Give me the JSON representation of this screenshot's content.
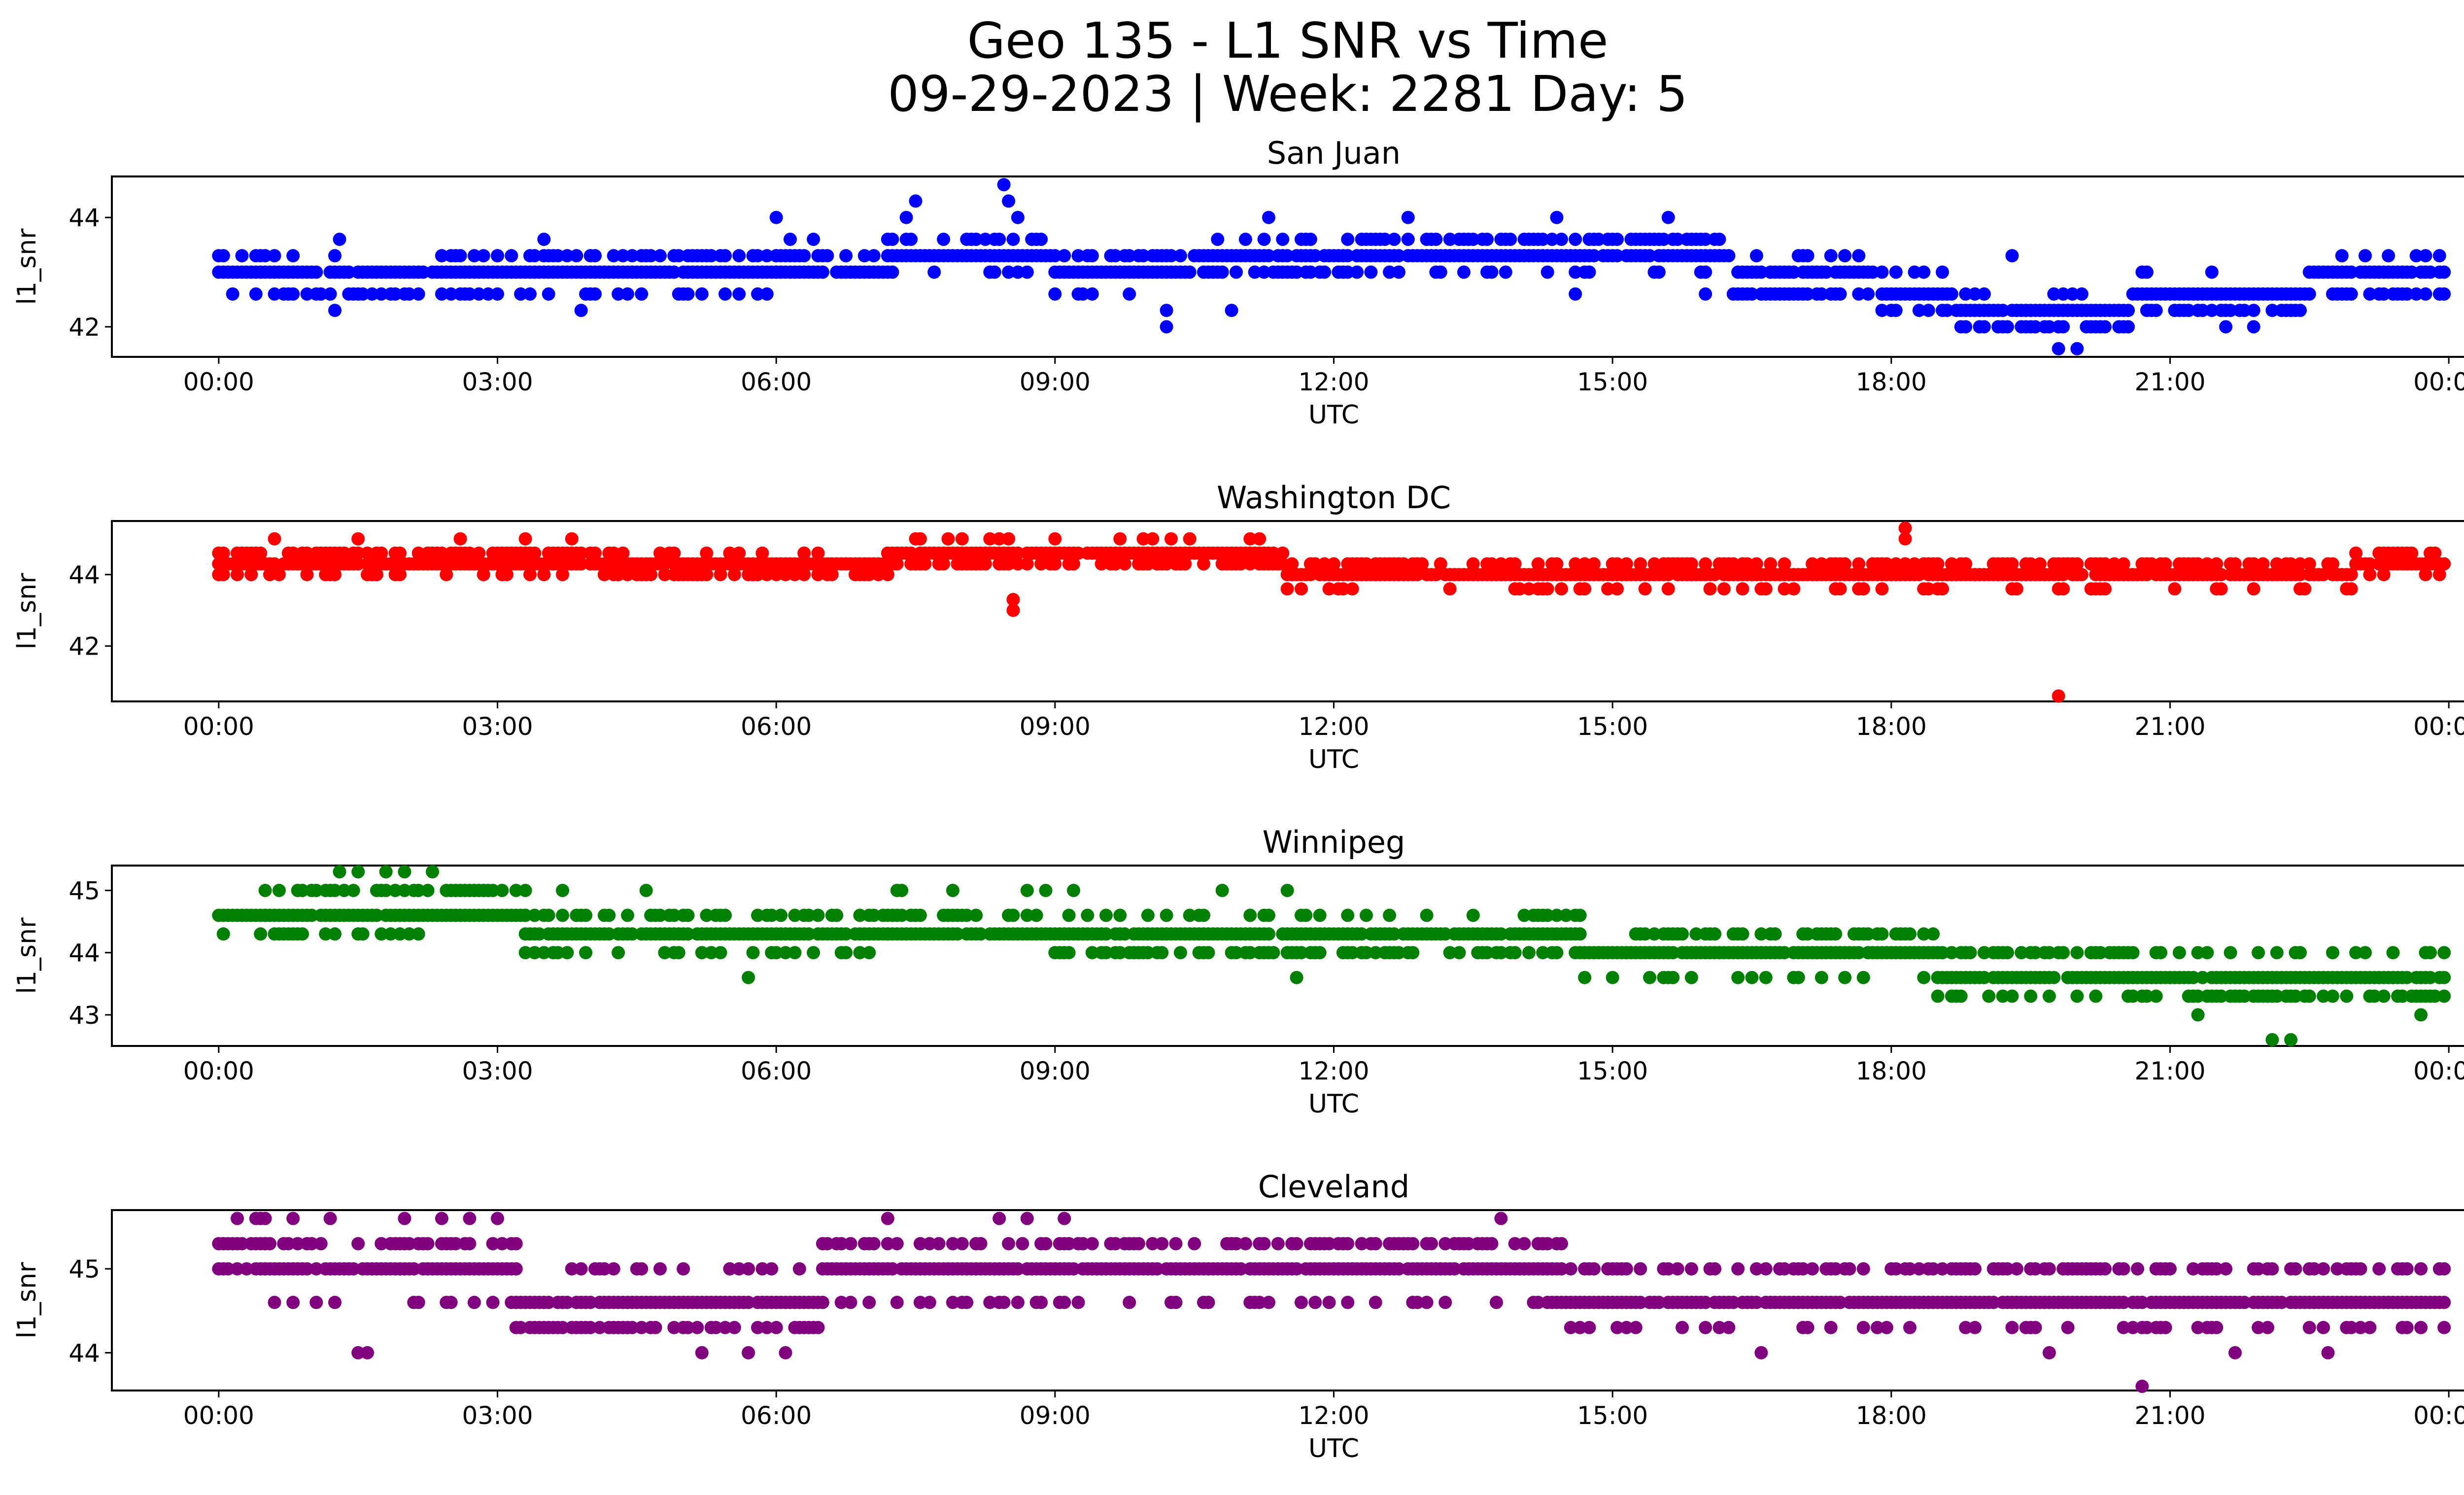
{
  "figure": {
    "title_line1": "Geo 135 - L1 SNR vs Time",
    "title_line2": "09-29-2023 | Week: 2281 Day: 5"
  },
  "chart_data": [
    {
      "type": "scatter",
      "title": "San Juan",
      "xlabel": "UTC",
      "ylabel": "l1_snr",
      "color": "#0000ff",
      "x_unit": "hours UTC",
      "xlim": [
        -1.15,
        25.15
      ],
      "ylim": [
        41.45,
        44.75
      ],
      "xticks": [
        0,
        3,
        6,
        9,
        12,
        15,
        18,
        21,
        24
      ],
      "xtick_labels": [
        "00:00",
        "03:00",
        "06:00",
        "09:00",
        "12:00",
        "15:00",
        "18:00",
        "21:00",
        "00:00"
      ],
      "yticks": [
        42,
        44
      ],
      "segments": [
        {
          "start": 0.0,
          "end": 0.6,
          "levels": [
            43.0,
            43.3,
            42.6
          ]
        },
        {
          "start": 0.6,
          "end": 1.5,
          "levels": [
            43.0,
            42.6,
            43.3
          ]
        },
        {
          "start": 1.5,
          "end": 3.0,
          "levels": [
            43.0,
            42.6,
            43.3
          ]
        },
        {
          "start": 3.0,
          "end": 6.0,
          "levels": [
            43.0,
            43.3,
            42.6
          ]
        },
        {
          "start": 6.0,
          "end": 7.2,
          "levels": [
            43.0,
            43.3,
            43.6
          ]
        },
        {
          "start": 7.2,
          "end": 9.0,
          "levels": [
            43.3,
            43.6,
            43.0
          ]
        },
        {
          "start": 9.0,
          "end": 10.5,
          "levels": [
            43.0,
            43.3,
            42.6
          ]
        },
        {
          "start": 10.5,
          "end": 12.3,
          "levels": [
            43.3,
            43.0,
            43.6
          ]
        },
        {
          "start": 12.3,
          "end": 16.3,
          "levels": [
            43.3,
            43.6,
            43.0
          ]
        },
        {
          "start": 16.3,
          "end": 17.9,
          "levels": [
            43.0,
            42.6,
            43.3
          ]
        },
        {
          "start": 17.9,
          "end": 18.7,
          "levels": [
            42.6,
            42.3,
            43.0
          ]
        },
        {
          "start": 18.7,
          "end": 20.6,
          "levels": [
            42.3,
            42.0,
            42.6
          ]
        },
        {
          "start": 20.6,
          "end": 22.5,
          "levels": [
            42.6,
            42.3,
            43.0
          ]
        },
        {
          "start": 22.5,
          "end": 24.0,
          "levels": [
            43.0,
            42.6,
            43.3
          ]
        }
      ],
      "points": [
        {
          "x": 1.25,
          "y": 42.3
        },
        {
          "x": 1.3,
          "y": 43.6
        },
        {
          "x": 3.5,
          "y": 43.6
        },
        {
          "x": 3.9,
          "y": 42.3
        },
        {
          "x": 6.0,
          "y": 44.0
        },
        {
          "x": 7.4,
          "y": 44.0
        },
        {
          "x": 7.5,
          "y": 44.3
        },
        {
          "x": 8.45,
          "y": 44.6
        },
        {
          "x": 8.5,
          "y": 44.3
        },
        {
          "x": 8.6,
          "y": 44.0
        },
        {
          "x": 10.2,
          "y": 42.0
        },
        {
          "x": 10.2,
          "y": 42.3
        },
        {
          "x": 11.3,
          "y": 44.0
        },
        {
          "x": 10.9,
          "y": 42.3
        },
        {
          "x": 12.8,
          "y": 44.0
        },
        {
          "x": 14.4,
          "y": 44.0
        },
        {
          "x": 15.6,
          "y": 44.0
        },
        {
          "x": 19.3,
          "y": 43.3
        },
        {
          "x": 19.8,
          "y": 41.6
        },
        {
          "x": 20.0,
          "y": 41.6
        },
        {
          "x": 21.6,
          "y": 42.0
        },
        {
          "x": 21.9,
          "y": 42.0
        },
        {
          "x": 16.0,
          "y": 42.6
        },
        {
          "x": 14.6,
          "y": 42.6
        }
      ]
    },
    {
      "type": "scatter",
      "title": "Washington DC",
      "xlabel": "UTC",
      "ylabel": "l1_snr",
      "color": "#ff0000",
      "x_unit": "hours UTC",
      "xlim": [
        -1.15,
        25.15
      ],
      "ylim": [
        40.45,
        45.5
      ],
      "xticks": [
        0,
        3,
        6,
        9,
        12,
        15,
        18,
        21,
        24
      ],
      "xtick_labels": [
        "00:00",
        "03:00",
        "06:00",
        "09:00",
        "12:00",
        "15:00",
        "18:00",
        "21:00",
        "00:00"
      ],
      "yticks": [
        42,
        44
      ],
      "segments": [
        {
          "start": 0.0,
          "end": 4.3,
          "levels": [
            44.3,
            44.6,
            44.0
          ]
        },
        {
          "start": 4.3,
          "end": 7.2,
          "levels": [
            44.3,
            44.0,
            44.6
          ]
        },
        {
          "start": 7.2,
          "end": 11.5,
          "levels": [
            44.6,
            44.3,
            45.0
          ]
        },
        {
          "start": 11.5,
          "end": 23.0,
          "levels": [
            44.0,
            44.3,
            43.6
          ]
        },
        {
          "start": 23.0,
          "end": 24.0,
          "levels": [
            44.3,
            44.6,
            44.0
          ]
        }
      ],
      "points": [
        {
          "x": 8.55,
          "y": 43.0
        },
        {
          "x": 8.55,
          "y": 43.3
        },
        {
          "x": 18.15,
          "y": 45.3
        },
        {
          "x": 18.15,
          "y": 45.0
        },
        {
          "x": 19.8,
          "y": 40.6
        },
        {
          "x": 0.6,
          "y": 45.0
        },
        {
          "x": 1.5,
          "y": 45.0
        },
        {
          "x": 3.3,
          "y": 45.0
        },
        {
          "x": 3.8,
          "y": 45.0
        },
        {
          "x": 2.6,
          "y": 45.0
        }
      ]
    },
    {
      "type": "scatter",
      "title": "Winnipeg",
      "xlabel": "UTC",
      "ylabel": "l1_snr",
      "color": "#008000",
      "x_unit": "hours UTC",
      "xlim": [
        -1.15,
        25.15
      ],
      "ylim": [
        42.5,
        45.4
      ],
      "xticks": [
        0,
        3,
        6,
        9,
        12,
        15,
        18,
        21,
        24
      ],
      "xtick_labels": [
        "00:00",
        "03:00",
        "06:00",
        "09:00",
        "12:00",
        "15:00",
        "18:00",
        "21:00",
        "00:00"
      ],
      "yticks": [
        43,
        44,
        45
      ],
      "segments": [
        {
          "start": 0.0,
          "end": 0.5,
          "levels": [
            44.6,
            44.3
          ]
        },
        {
          "start": 0.5,
          "end": 3.3,
          "levels": [
            44.6,
            45.0,
            44.3
          ]
        },
        {
          "start": 3.3,
          "end": 7.2,
          "levels": [
            44.3,
            44.6,
            44.0
          ]
        },
        {
          "start": 7.2,
          "end": 9.0,
          "levels": [
            44.3,
            44.6,
            45.0
          ]
        },
        {
          "start": 9.0,
          "end": 14.7,
          "levels": [
            44.3,
            44.0,
            44.6
          ]
        },
        {
          "start": 14.7,
          "end": 18.5,
          "levels": [
            44.0,
            44.3,
            43.6
          ]
        },
        {
          "start": 18.5,
          "end": 20.6,
          "levels": [
            43.6,
            44.0,
            43.3
          ]
        },
        {
          "start": 20.6,
          "end": 24.0,
          "levels": [
            43.6,
            43.3,
            44.0
          ]
        }
      ],
      "points": [
        {
          "x": 1.3,
          "y": 45.3
        },
        {
          "x": 1.5,
          "y": 45.3
        },
        {
          "x": 1.8,
          "y": 45.3
        },
        {
          "x": 2.0,
          "y": 45.3
        },
        {
          "x": 2.3,
          "y": 45.3
        },
        {
          "x": 1.25,
          "y": 44.3
        },
        {
          "x": 3.7,
          "y": 45.0
        },
        {
          "x": 4.6,
          "y": 45.0
        },
        {
          "x": 5.7,
          "y": 43.6
        },
        {
          "x": 9.2,
          "y": 45.0
        },
        {
          "x": 10.8,
          "y": 45.0
        },
        {
          "x": 11.5,
          "y": 45.0
        },
        {
          "x": 11.6,
          "y": 43.6
        },
        {
          "x": 14.5,
          "y": 44.6
        },
        {
          "x": 22.1,
          "y": 42.6
        },
        {
          "x": 22.3,
          "y": 42.6
        },
        {
          "x": 21.3,
          "y": 43.0
        },
        {
          "x": 23.7,
          "y": 43.0
        }
      ]
    },
    {
      "type": "scatter",
      "title": "Cleveland",
      "xlabel": "UTC",
      "ylabel": "l1_snr",
      "color": "#800080",
      "x_unit": "hours UTC",
      "xlim": [
        -1.15,
        25.15
      ],
      "ylim": [
        43.55,
        45.7
      ],
      "xticks": [
        0,
        3,
        6,
        9,
        12,
        15,
        18,
        21,
        24
      ],
      "xtick_labels": [
        "00:00",
        "03:00",
        "06:00",
        "09:00",
        "12:00",
        "15:00",
        "18:00",
        "21:00",
        "00:00"
      ],
      "yticks": [
        44,
        45
      ],
      "segments": [
        {
          "start": 0.0,
          "end": 0.5,
          "levels": [
            45.3,
            45.0,
            45.6
          ]
        },
        {
          "start": 0.5,
          "end": 3.2,
          "levels": [
            45.0,
            45.3,
            44.6
          ]
        },
        {
          "start": 3.2,
          "end": 6.5,
          "levels": [
            44.6,
            44.3,
            45.0
          ]
        },
        {
          "start": 6.5,
          "end": 14.5,
          "levels": [
            45.0,
            45.3,
            44.6
          ]
        },
        {
          "start": 14.5,
          "end": 20.2,
          "levels": [
            44.6,
            45.0,
            44.3
          ]
        },
        {
          "start": 20.2,
          "end": 24.0,
          "levels": [
            44.6,
            45.0,
            44.3
          ]
        }
      ],
      "points": [
        {
          "x": 0.2,
          "y": 45.6
        },
        {
          "x": 0.5,
          "y": 45.6
        },
        {
          "x": 0.8,
          "y": 45.6
        },
        {
          "x": 1.2,
          "y": 45.6
        },
        {
          "x": 2.0,
          "y": 45.6
        },
        {
          "x": 2.4,
          "y": 45.6
        },
        {
          "x": 2.7,
          "y": 45.6
        },
        {
          "x": 3.0,
          "y": 45.6
        },
        {
          "x": 1.6,
          "y": 44.0
        },
        {
          "x": 1.5,
          "y": 44.0
        },
        {
          "x": 7.2,
          "y": 45.6
        },
        {
          "x": 8.4,
          "y": 45.6
        },
        {
          "x": 8.7,
          "y": 45.6
        },
        {
          "x": 9.1,
          "y": 45.6
        },
        {
          "x": 13.8,
          "y": 45.6
        },
        {
          "x": 5.7,
          "y": 44.0
        },
        {
          "x": 6.1,
          "y": 44.0
        },
        {
          "x": 5.2,
          "y": 44.0
        },
        {
          "x": 16.6,
          "y": 44.0
        },
        {
          "x": 19.7,
          "y": 44.0
        },
        {
          "x": 20.7,
          "y": 43.6
        },
        {
          "x": 21.7,
          "y": 44.0
        },
        {
          "x": 22.7,
          "y": 44.0
        },
        {
          "x": 5.7,
          "y": 45.0
        }
      ]
    }
  ]
}
